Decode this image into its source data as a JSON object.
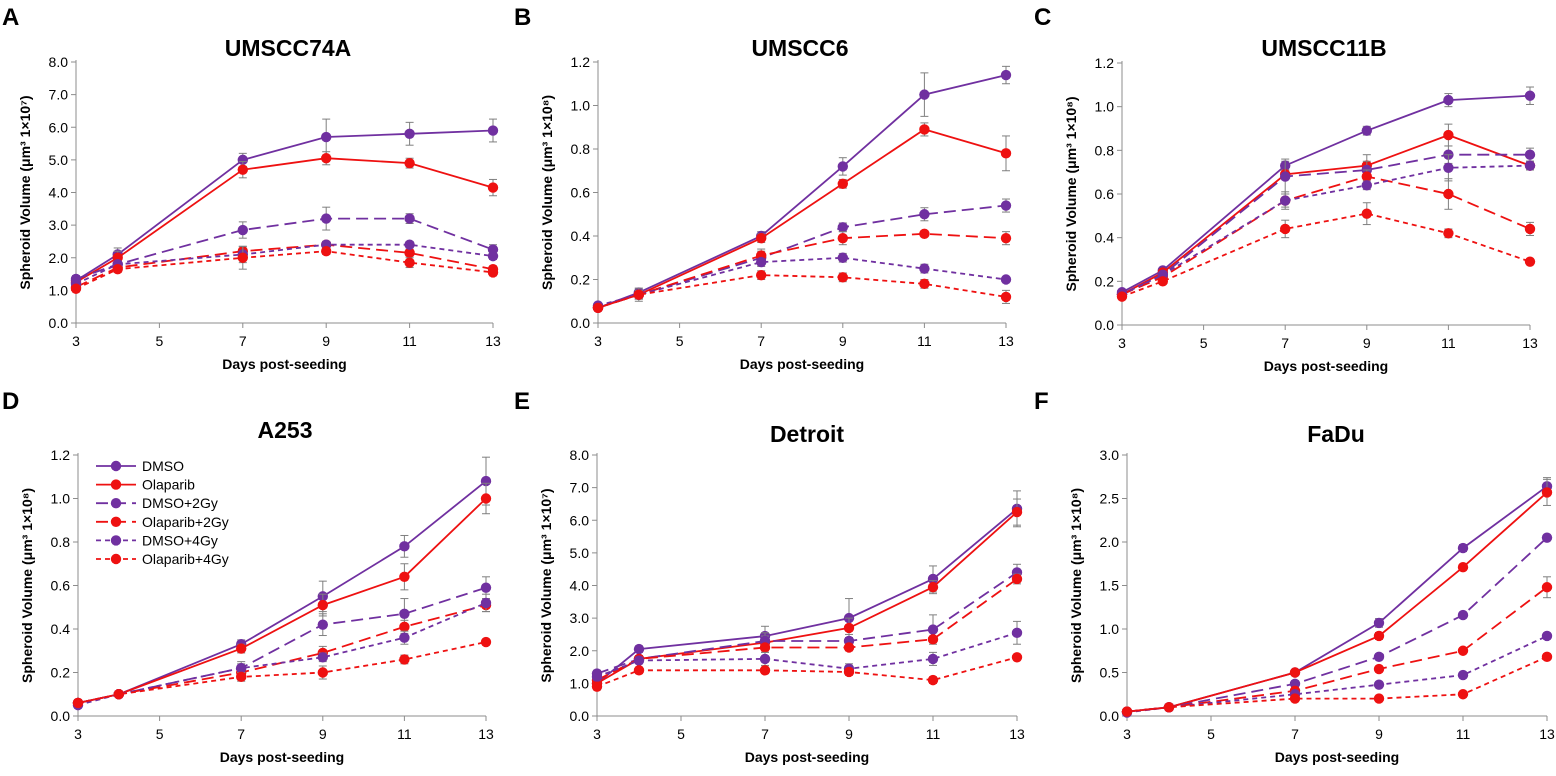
{
  "figure": {
    "colors": {
      "purple": "#7030A0",
      "red": "#EE1111",
      "errorbar": "#7f7f7f",
      "axis": "#8c8c8c"
    },
    "legend": [
      {
        "label": "DMSO",
        "color": "#7030A0",
        "dash": "solid"
      },
      {
        "label": "Olaparib",
        "color": "#EE1111",
        "dash": "solid"
      },
      {
        "label": "DMSO+2Gy",
        "color": "#7030A0",
        "dash": "long"
      },
      {
        "label": "Olaparib+2Gy",
        "color": "#EE1111",
        "dash": "long"
      },
      {
        "label": "DMSO+4Gy",
        "color": "#7030A0",
        "dash": "short"
      },
      {
        "label": "Olaparib+4Gy",
        "color": "#EE1111",
        "dash": "short"
      }
    ]
  },
  "chart_data": [
    {
      "type": "line",
      "letter": "A",
      "title": "UMSCC74A",
      "xlabel": "Days post-seeding",
      "ylabel": "Spheroid Volume (μm³ 1×10⁷)",
      "x": [
        3,
        4,
        7,
        9,
        11,
        13
      ],
      "xlim": [
        3,
        13
      ],
      "xticks": [
        "3",
        "5",
        "7",
        "9",
        "11",
        "13"
      ],
      "ylim": [
        0,
        8
      ],
      "yticks": [
        "0.0",
        "1.0",
        "2.0",
        "3.0",
        "4.0",
        "5.0",
        "6.0",
        "7.0",
        "8.0"
      ],
      "series": [
        {
          "name": "DMSO",
          "values": [
            1.3,
            2.1,
            5.0,
            5.7,
            5.8,
            5.9
          ],
          "errors": [
            0.1,
            0.2,
            0.2,
            0.55,
            0.35,
            0.35
          ]
        },
        {
          "name": "Olaparib",
          "values": [
            1.25,
            2.0,
            4.7,
            5.05,
            4.9,
            4.15
          ],
          "errors": [
            0.1,
            0.2,
            0.25,
            0.2,
            0.15,
            0.25
          ]
        },
        {
          "name": "DMSO+2Gy",
          "values": [
            1.35,
            1.8,
            2.85,
            3.2,
            3.2,
            2.25
          ],
          "errors": [
            0.1,
            0.1,
            0.25,
            0.35,
            0.15,
            0.15
          ]
        },
        {
          "name": "Olaparib+2Gy",
          "values": [
            1.1,
            1.7,
            2.2,
            2.4,
            2.15,
            1.65
          ],
          "errors": [
            0.1,
            0.1,
            0.1,
            0.1,
            0.1,
            0.1
          ]
        },
        {
          "name": "DMSO+4Gy",
          "values": [
            1.2,
            1.8,
            2.1,
            2.4,
            2.4,
            2.05
          ],
          "errors": [
            0.1,
            0.1,
            0.25,
            0.1,
            0.1,
            0.1
          ]
        },
        {
          "name": "Olaparib+4Gy",
          "values": [
            1.05,
            1.65,
            2.0,
            2.2,
            1.85,
            1.55
          ],
          "errors": [
            0.1,
            0.1,
            0.35,
            0.1,
            0.15,
            0.1
          ]
        }
      ]
    },
    {
      "type": "line",
      "letter": "B",
      "title": "UMSCC6",
      "xlabel": "Days post-seeding",
      "ylabel": "Spheroid Volume (μm³ 1×10⁸)",
      "x": [
        3,
        4,
        7,
        9,
        11,
        13
      ],
      "xlim": [
        3,
        13
      ],
      "xticks": [
        "3",
        "5",
        "7",
        "9",
        "11",
        "13"
      ],
      "ylim": [
        0,
        1.2
      ],
      "yticks": [
        "0.0",
        "0.2",
        "0.4",
        "0.6",
        "0.8",
        "1.0",
        "1.2"
      ],
      "series": [
        {
          "name": "DMSO",
          "values": [
            0.07,
            0.14,
            0.4,
            0.72,
            1.05,
            1.14
          ],
          "errors": [
            0.01,
            0.02,
            0.02,
            0.04,
            0.1,
            0.04
          ]
        },
        {
          "name": "Olaparib",
          "values": [
            0.07,
            0.13,
            0.39,
            0.64,
            0.89,
            0.78
          ],
          "errors": [
            0.01,
            0.02,
            0.02,
            0.02,
            0.03,
            0.08
          ]
        },
        {
          "name": "DMSO+2Gy",
          "values": [
            0.07,
            0.13,
            0.3,
            0.44,
            0.5,
            0.54
          ],
          "errors": [
            0.01,
            0.03,
            0.04,
            0.02,
            0.03,
            0.03
          ]
        },
        {
          "name": "Olaparib+2Gy",
          "values": [
            0.07,
            0.13,
            0.31,
            0.39,
            0.41,
            0.39
          ],
          "errors": [
            0.01,
            0.02,
            0.02,
            0.03,
            0.01,
            0.03
          ]
        },
        {
          "name": "DMSO+4Gy",
          "values": [
            0.08,
            0.13,
            0.28,
            0.3,
            0.25,
            0.2
          ],
          "errors": [
            0.01,
            0.02,
            0.01,
            0.02,
            0.02,
            0.01
          ]
        },
        {
          "name": "Olaparib+4Gy",
          "values": [
            0.07,
            0.13,
            0.22,
            0.21,
            0.18,
            0.12
          ],
          "errors": [
            0.01,
            0.02,
            0.02,
            0.02,
            0.02,
            0.03
          ]
        }
      ]
    },
    {
      "type": "line",
      "letter": "C",
      "title": "UMSCC11B",
      "xlabel": "Days post-seeding",
      "ylabel": "Spheroid Volume (μm³ 1×10⁸)",
      "x": [
        3,
        4,
        7,
        9,
        11,
        13
      ],
      "xlim": [
        3,
        13
      ],
      "xticks": [
        "3",
        "5",
        "7",
        "9",
        "11",
        "13"
      ],
      "ylim": [
        0,
        1.2
      ],
      "yticks": [
        "0.0",
        "0.2",
        "0.4",
        "0.6",
        "0.8",
        "1.0",
        "1.2"
      ],
      "series": [
        {
          "name": "DMSO",
          "values": [
            0.15,
            0.25,
            0.73,
            0.89,
            1.03,
            1.05
          ],
          "errors": [
            0.01,
            0.01,
            0.02,
            0.02,
            0.03,
            0.04
          ]
        },
        {
          "name": "Olaparib",
          "values": [
            0.14,
            0.24,
            0.69,
            0.73,
            0.87,
            0.73
          ],
          "errors": [
            0.01,
            0.01,
            0.02,
            0.05,
            0.05,
            0.02
          ]
        },
        {
          "name": "DMSO+2Gy",
          "values": [
            0.14,
            0.23,
            0.68,
            0.71,
            0.78,
            0.78
          ],
          "errors": [
            0.01,
            0.01,
            0.08,
            0.04,
            0.04,
            0.03
          ]
        },
        {
          "name": "Olaparib+2Gy",
          "values": [
            0.14,
            0.22,
            0.57,
            0.68,
            0.6,
            0.44
          ],
          "errors": [
            0.01,
            0.01,
            0.04,
            0.03,
            0.07,
            0.03
          ]
        },
        {
          "name": "DMSO+4Gy",
          "values": [
            0.14,
            0.23,
            0.57,
            0.64,
            0.72,
            0.73
          ],
          "errors": [
            0.01,
            0.01,
            0.03,
            0.02,
            0.06,
            0.02
          ]
        },
        {
          "name": "Olaparib+4Gy",
          "values": [
            0.13,
            0.2,
            0.44,
            0.51,
            0.42,
            0.29
          ],
          "errors": [
            0.01,
            0.01,
            0.04,
            0.05,
            0.02,
            0.01
          ]
        }
      ]
    },
    {
      "type": "line",
      "letter": "D",
      "title": "A253",
      "show_legend": true,
      "xlabel": "Days post-seeding",
      "ylabel": "Spheroid Volume (μm³ 1×10⁸)",
      "x": [
        3,
        4,
        7,
        9,
        11,
        13
      ],
      "xlim": [
        3,
        13
      ],
      "xticks": [
        "3",
        "5",
        "7",
        "9",
        "11",
        "13"
      ],
      "ylim": [
        0,
        1.2
      ],
      "yticks": [
        "0.0",
        "0.2",
        "0.4",
        "0.6",
        "0.8",
        "1.0",
        "1.2"
      ],
      "series": [
        {
          "name": "DMSO",
          "values": [
            0.06,
            0.1,
            0.33,
            0.55,
            0.78,
            1.08
          ],
          "errors": [
            0.01,
            0.01,
            0.02,
            0.07,
            0.05,
            0.11
          ]
        },
        {
          "name": "Olaparib",
          "values": [
            0.06,
            0.1,
            0.31,
            0.51,
            0.64,
            1.0
          ],
          "errors": [
            0.01,
            0.01,
            0.02,
            0.05,
            0.06,
            0.07
          ]
        },
        {
          "name": "DMSO+2Gy",
          "values": [
            0.06,
            0.1,
            0.22,
            0.42,
            0.47,
            0.59
          ],
          "errors": [
            0.01,
            0.01,
            0.03,
            0.05,
            0.07,
            0.05
          ]
        },
        {
          "name": "Olaparib+2Gy",
          "values": [
            0.06,
            0.1,
            0.2,
            0.29,
            0.41,
            0.51
          ],
          "errors": [
            0.01,
            0.01,
            0.02,
            0.03,
            0.03,
            0.03
          ]
        },
        {
          "name": "DMSO+4Gy",
          "values": [
            0.05,
            0.1,
            0.22,
            0.27,
            0.36,
            0.52
          ],
          "errors": [
            0.01,
            0.01,
            0.02,
            0.02,
            0.03,
            0.04
          ]
        },
        {
          "name": "Olaparib+4Gy",
          "values": [
            0.06,
            0.1,
            0.18,
            0.2,
            0.26,
            0.34
          ],
          "errors": [
            0.01,
            0.01,
            0.02,
            0.03,
            0.02,
            0.01
          ]
        }
      ]
    },
    {
      "type": "line",
      "letter": "E",
      "title": "Detroit",
      "xlabel": "Days post-seeding",
      "ylabel": "Spheroid Volume (μm³ 1×10⁷)",
      "x": [
        3,
        4,
        7,
        9,
        11,
        13
      ],
      "xlim": [
        3,
        13
      ],
      "xticks": [
        "3",
        "5",
        "7",
        "9",
        "11",
        "13"
      ],
      "ylim": [
        0,
        8
      ],
      "yticks": [
        "0.0",
        "1.0",
        "2.0",
        "3.0",
        "4.0",
        "5.0",
        "6.0",
        "7.0",
        "8.0"
      ],
      "series": [
        {
          "name": "DMSO",
          "values": [
            1.0,
            2.05,
            2.45,
            3.0,
            4.2,
            6.35
          ],
          "errors": [
            0.1,
            0.1,
            0.3,
            0.6,
            0.4,
            0.55
          ]
        },
        {
          "name": "Olaparib",
          "values": [
            1.0,
            1.75,
            2.25,
            2.7,
            3.95,
            6.25
          ],
          "errors": [
            0.1,
            0.1,
            0.3,
            0.3,
            0.2,
            0.4
          ]
        },
        {
          "name": "DMSO+2Gy",
          "values": [
            1.3,
            1.75,
            2.3,
            2.3,
            2.65,
            4.4
          ],
          "errors": [
            0.1,
            0.1,
            0.15,
            0.2,
            0.45,
            0.25
          ]
        },
        {
          "name": "Olaparib+2Gy",
          "values": [
            1.1,
            1.75,
            2.1,
            2.1,
            2.35,
            4.2
          ],
          "errors": [
            0.1,
            0.1,
            0.1,
            0.1,
            0.1,
            0.15
          ]
        },
        {
          "name": "DMSO+4Gy",
          "values": [
            1.2,
            1.7,
            1.75,
            1.45,
            1.75,
            2.55
          ],
          "errors": [
            0.1,
            0.1,
            0.2,
            0.15,
            0.2,
            0.35
          ]
        },
        {
          "name": "Olaparib+4Gy",
          "values": [
            0.9,
            1.4,
            1.4,
            1.35,
            1.1,
            1.8
          ],
          "errors": [
            0.1,
            0.1,
            0.1,
            0.1,
            0.1,
            0.05
          ]
        }
      ]
    },
    {
      "type": "line",
      "letter": "F",
      "title": "FaDu",
      "xlabel": "Days post-seeding",
      "ylabel": "Spheroid Volume (μm³ 1×10⁸)",
      "x": [
        3,
        4,
        7,
        9,
        11,
        13
      ],
      "xlim": [
        3,
        13
      ],
      "xticks": [
        "3",
        "5",
        "7",
        "9",
        "11",
        "13"
      ],
      "ylim": [
        0,
        3
      ],
      "yticks": [
        "0.0",
        "0.5",
        "1.0",
        "1.5",
        "2.0",
        "2.5",
        "3.0"
      ],
      "series": [
        {
          "name": "DMSO",
          "values": [
            0.05,
            0.1,
            0.5,
            1.07,
            1.93,
            2.64
          ],
          "errors": [
            0.01,
            0.01,
            0.03,
            0.05,
            0.04,
            0.1
          ]
        },
        {
          "name": "Olaparib",
          "values": [
            0.05,
            0.1,
            0.5,
            0.92,
            1.71,
            2.57
          ],
          "errors": [
            0.01,
            0.01,
            0.03,
            0.04,
            0.03,
            0.15
          ]
        },
        {
          "name": "DMSO+2Gy",
          "values": [
            0.05,
            0.1,
            0.37,
            0.68,
            1.16,
            2.05
          ],
          "errors": [
            0.01,
            0.01,
            0.02,
            0.03,
            0.03,
            0.03
          ]
        },
        {
          "name": "Olaparib+2Gy",
          "values": [
            0.05,
            0.1,
            0.29,
            0.54,
            0.75,
            1.48
          ],
          "errors": [
            0.01,
            0.01,
            0.02,
            0.03,
            0.02,
            0.12
          ]
        },
        {
          "name": "DMSO+4Gy",
          "values": [
            0.04,
            0.1,
            0.25,
            0.36,
            0.47,
            0.92
          ],
          "errors": [
            0.01,
            0.01,
            0.02,
            0.02,
            0.02,
            0.02
          ]
        },
        {
          "name": "Olaparib+4Gy",
          "values": [
            0.05,
            0.1,
            0.2,
            0.2,
            0.25,
            0.68
          ],
          "errors": [
            0.01,
            0.01,
            0.02,
            0.02,
            0.02,
            0.02
          ]
        }
      ]
    }
  ]
}
